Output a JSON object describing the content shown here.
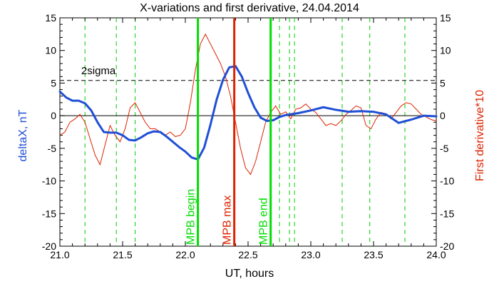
{
  "chart_data": {
    "type": "line",
    "title": "X-variations and first derivative, 24.04.2014",
    "xlabel": "UT, hours",
    "ylabel_left": "deltaX, nT",
    "ylabel_right": "First derivative*10",
    "xlim": [
      21.0,
      24.0
    ],
    "ylim_left": [
      -20,
      15
    ],
    "ylim_right": [
      -20,
      15
    ],
    "x_ticks": [
      "21.0",
      "21.5",
      "22.0",
      "22.5",
      "23.0",
      "23.5",
      "24.0"
    ],
    "y_ticks_left": [
      "-20",
      "-15",
      "-10",
      "-5",
      "0",
      "5",
      "10",
      "15"
    ],
    "y_ticks_right": [
      "-20",
      "-15",
      "-10",
      "-5",
      "0",
      "5",
      "10",
      "15"
    ],
    "threshold": {
      "label": "2sigma",
      "value": 5.4
    },
    "zero_line": 0,
    "dashed_markers": [
      21.2,
      21.45,
      21.6,
      22.75,
      22.83,
      22.87,
      23.25,
      23.47,
      23.75
    ],
    "event_lines": [
      {
        "label": "MPB begin",
        "x": 22.1,
        "color": "#00dd00"
      },
      {
        "label": "MPB max",
        "x": 22.39,
        "color": "#dd2200"
      },
      {
        "label": "MPB end",
        "x": 22.68,
        "color": "#00dd00"
      }
    ],
    "series": [
      {
        "name": "deltaX, nT",
        "color": "#1f4fd6",
        "x": [
          21.0,
          21.05,
          21.1,
          21.15,
          21.2,
          21.25,
          21.3,
          21.35,
          21.4,
          21.45,
          21.5,
          21.55,
          21.6,
          21.65,
          21.7,
          21.75,
          21.8,
          21.85,
          21.9,
          21.95,
          22.0,
          22.05,
          22.1,
          22.15,
          22.2,
          22.25,
          22.3,
          22.35,
          22.4,
          22.45,
          22.5,
          22.55,
          22.6,
          22.65,
          22.7,
          22.75,
          22.8,
          22.9,
          23.0,
          23.1,
          23.2,
          23.3,
          23.4,
          23.5,
          23.6,
          23.7,
          23.8,
          23.9,
          24.0
        ],
        "y": [
          3.7,
          2.8,
          2.3,
          2.3,
          1.9,
          0.8,
          -1.0,
          -2.5,
          -2.6,
          -2.6,
          -3.0,
          -3.7,
          -3.8,
          -3.3,
          -2.7,
          -2.4,
          -2.5,
          -3.2,
          -4.0,
          -4.8,
          -5.5,
          -6.4,
          -6.7,
          -4.9,
          -1.4,
          2.5,
          5.5,
          7.4,
          7.6,
          6.0,
          3.5,
          1.3,
          -0.3,
          -0.8,
          -0.7,
          -0.2,
          0.1,
          0.4,
          0.8,
          1.3,
          0.9,
          0.6,
          0.7,
          0.6,
          0.2,
          -1.1,
          -0.6,
          0.0,
          -0.1
        ]
      },
      {
        "name": "First derivative*10",
        "color": "#dd2200",
        "x": [
          21.0,
          21.04,
          21.08,
          21.12,
          21.16,
          21.2,
          21.24,
          21.28,
          21.32,
          21.36,
          21.4,
          21.44,
          21.48,
          21.52,
          21.56,
          21.6,
          21.64,
          21.68,
          21.72,
          21.76,
          21.8,
          21.84,
          21.88,
          21.92,
          21.96,
          22.0,
          22.04,
          22.08,
          22.12,
          22.16,
          22.2,
          22.24,
          22.28,
          22.32,
          22.36,
          22.4,
          22.44,
          22.48,
          22.52,
          22.56,
          22.6,
          22.64,
          22.68,
          22.72,
          22.76,
          22.8,
          22.84,
          22.88,
          22.92,
          22.96,
          23.0,
          23.04,
          23.08,
          23.12,
          23.16,
          23.2,
          23.24,
          23.28,
          23.32,
          23.36,
          23.4,
          23.44,
          23.48,
          23.52,
          23.56,
          23.6,
          23.64,
          23.68,
          23.72,
          23.76,
          23.8,
          23.84,
          23.88,
          23.92,
          23.96,
          24.0
        ],
        "y": [
          -3.0,
          -2.5,
          -1.0,
          -0.5,
          0.2,
          -1.0,
          -3.5,
          -6.0,
          -7.5,
          -4.5,
          -1.5,
          -3.0,
          -4.0,
          -2.0,
          1.2,
          2.0,
          0.5,
          -1.0,
          -2.0,
          -2.0,
          -2.5,
          -3.0,
          -2.5,
          -3.2,
          -3.0,
          -2.0,
          2.0,
          7.0,
          11.0,
          12.5,
          11.0,
          9.5,
          8.0,
          6.0,
          3.0,
          -1.0,
          -5.0,
          -8.0,
          -9.0,
          -7.0,
          -4.0,
          -1.0,
          0.5,
          1.5,
          0.2,
          0.6,
          -0.5,
          1.0,
          1.2,
          1.8,
          1.0,
          0.5,
          -0.5,
          -1.5,
          -1.2,
          -1.5,
          -0.8,
          0.2,
          0.8,
          1.5,
          1.2,
          -1.5,
          -2.0,
          -0.5,
          0.5,
          0.3,
          -0.5,
          0.5,
          1.5,
          2.0,
          1.8,
          1.0,
          0.2,
          -0.2,
          -0.6,
          -0.8
        ]
      }
    ]
  }
}
